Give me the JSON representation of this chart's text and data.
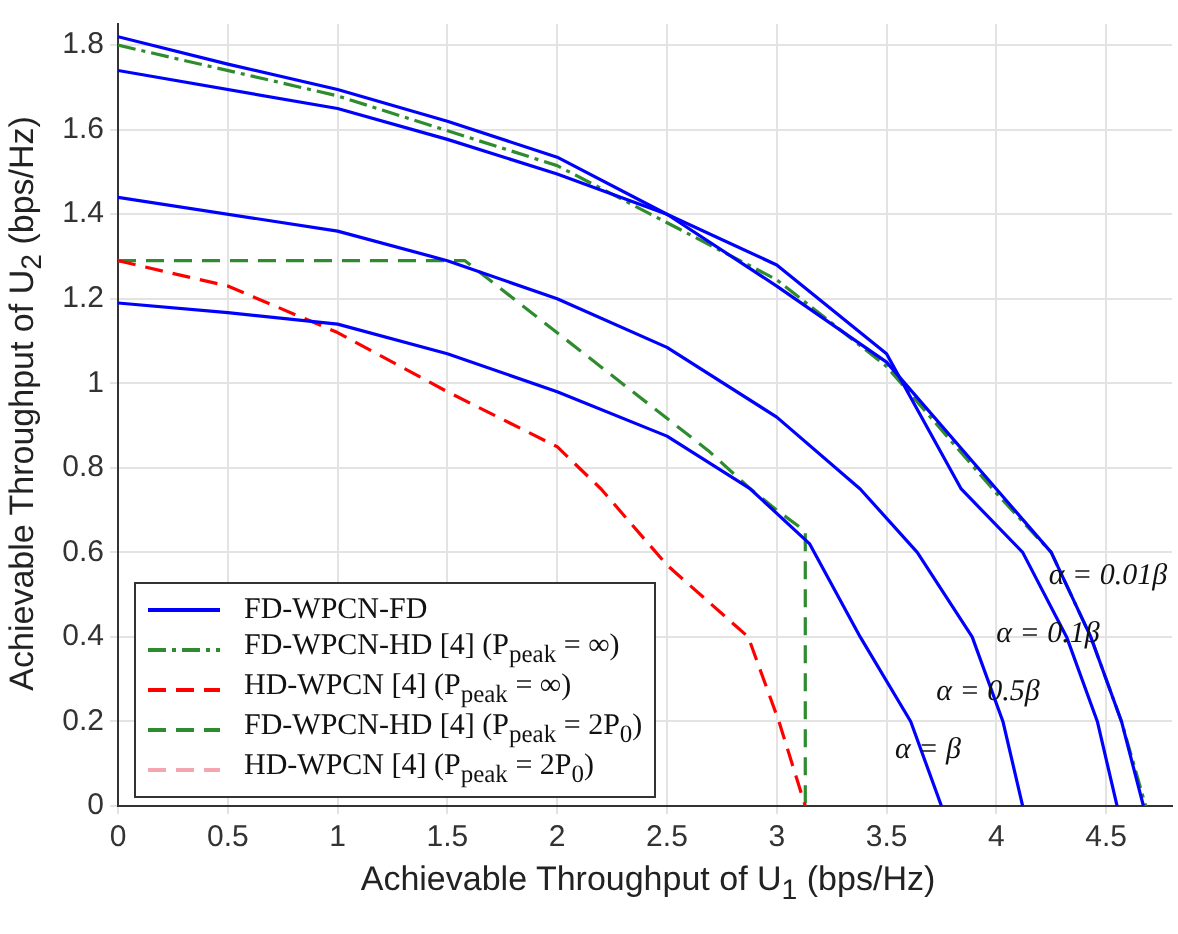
{
  "chart_data": {
    "type": "line",
    "xlabel": "Achievable Throughput of U$_{1}$ (bps/Hz)",
    "ylabel": "Achievable Throughput of U$_{2}$ (bps/Hz)",
    "xlim": [
      0,
      4.8
    ],
    "ylim": [
      0,
      1.85
    ],
    "xticks": [
      0,
      0.5,
      1,
      1.5,
      2,
      2.5,
      3,
      3.5,
      4,
      4.5
    ],
    "yticks": [
      0,
      0.2,
      0.4,
      0.6,
      0.8,
      1,
      1.2,
      1.4,
      1.6,
      1.8
    ],
    "grid": true,
    "legend": "bottom left",
    "marker": "none",
    "series": [
      {
        "name": "FD-WPCN-FD",
        "color": "#0000ff",
        "line_style": "solid",
        "x": [
          0,
          0.5,
          1,
          1.5,
          2,
          2.5,
          3,
          3.5,
          4,
          4.25,
          4.43,
          4.57,
          4.67
        ],
        "values": [
          1.82,
          1.755,
          1.695,
          1.62,
          1.535,
          1.4,
          1.23,
          1.05,
          0.75,
          0.6,
          0.4,
          0.2,
          0
        ]
      },
      {
        "color": "#0000ff",
        "line_style": "solid",
        "x": [
          0,
          1,
          1.5,
          2,
          2.5,
          3,
          3.5,
          3.84,
          4.12,
          4.32,
          4.46,
          4.55
        ],
        "values": [
          1.74,
          1.65,
          1.577,
          1.495,
          1.4,
          1.28,
          1.07,
          0.75,
          0.6,
          0.4,
          0.2,
          0
        ]
      },
      {
        "color": "#0000ff",
        "line_style": "solid",
        "x": [
          0,
          1,
          1.5,
          2,
          2.5,
          3,
          3.38,
          3.64,
          3.89,
          4.03,
          4.12
        ],
        "values": [
          1.44,
          1.36,
          1.29,
          1.2,
          1.085,
          0.92,
          0.75,
          0.6,
          0.4,
          0.2,
          0
        ]
      },
      {
        "color": "#0000ff",
        "line_style": "solid",
        "x": [
          0,
          0.5,
          1,
          1.5,
          2,
          2.5,
          2.88,
          3.15,
          3.38,
          3.61,
          3.75
        ],
        "values": [
          1.19,
          1.167,
          1.14,
          1.07,
          0.98,
          0.875,
          0.75,
          0.62,
          0.4,
          0.2,
          0
        ]
      },
      {
        "name": "FD-WPCN-HD [4] (P$_{peak}$ = ∞)",
        "color": "#2e8b2e",
        "line_style": "dashdot",
        "x": [
          0,
          1,
          2,
          3,
          3.5,
          4,
          4.25,
          4.43,
          4.57,
          4.68
        ],
        "values": [
          1.8,
          1.68,
          1.515,
          1.245,
          1.04,
          0.74,
          0.6,
          0.4,
          0.2,
          0
        ]
      },
      {
        "name": "HD-WPCN [4] (P$_{peak}$ = ∞)",
        "color": "#ff0000",
        "line_style": "dashed",
        "x": [
          0,
          0.5,
          1,
          1.5,
          2,
          2.2,
          2.5,
          2.87,
          3.01,
          3.13
        ],
        "values": [
          1.29,
          1.23,
          1.12,
          0.98,
          0.85,
          0.75,
          0.57,
          0.4,
          0.2,
          0
        ]
      },
      {
        "name": "FD-WPCN-HD [4] (P$_{peak}$ = 2P$_{0}$)",
        "color": "#2e8b2e",
        "line_style": "dashed",
        "x": [
          0,
          1.58,
          2.69,
          2.88,
          3.0,
          3.13,
          3.13
        ],
        "values": [
          1.29,
          1.29,
          0.84,
          0.75,
          0.7,
          0.65,
          0
        ]
      },
      {
        "name": "HD-WPCN [4] (P$_{peak}$ = 2P$_{0}$)",
        "color": "#f4a6b0",
        "line_style": "dashed"
      }
    ],
    "annotations": [
      "α = 0.01β",
      "α = 0.1β",
      "α = 0.5β",
      "α = β"
    ]
  }
}
